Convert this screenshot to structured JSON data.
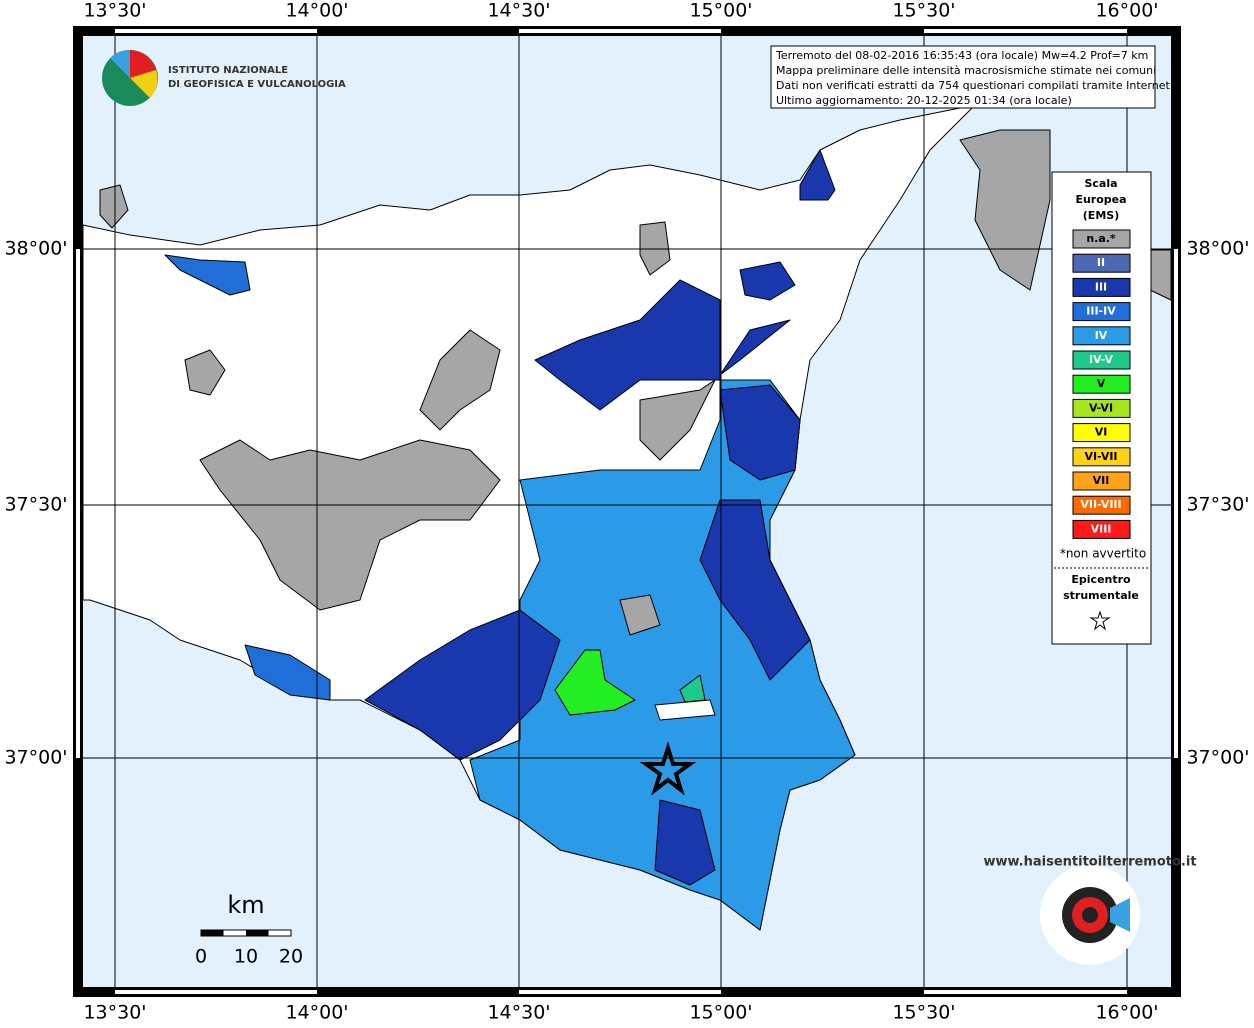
{
  "logo": {
    "line1": "ISTITUTO NAZIONALE",
    "line2": "DI GEOFISICA E VULCANOLOGIA"
  },
  "info": {
    "lines": [
      "Terremoto del 08-02-2016 16:35:43 (ora locale) Mw=4.2 Prof=7 km",
      "Mappa preliminare delle intensità macrosismiche stimate nei comuni",
      "Dati non verificati estratti da 754 questionari compilati tramite Internet.",
      "Ultimo aggiornamento: 20-12-2025 01:34 (ora locale)"
    ]
  },
  "axes": {
    "longitudes": [
      "13°30'",
      "14°00'",
      "14°30'",
      "15°00'",
      "15°30'",
      "16°00'"
    ],
    "latitudes": [
      "38°00'",
      "37°30'",
      "37°00'"
    ]
  },
  "legend": {
    "title": [
      "Scala",
      "Europea",
      "(EMS)"
    ],
    "items": [
      {
        "label": "n.a.*",
        "color": "#a6a6a6"
      },
      {
        "label": "II",
        "color": "#4a68b4"
      },
      {
        "label": "III",
        "color": "#1a38ae"
      },
      {
        "label": "III-IV",
        "color": "#206fd8"
      },
      {
        "label": "IV",
        "color": "#2b9be8"
      },
      {
        "label": "IV-V",
        "color": "#1fc98a"
      },
      {
        "label": "V",
        "color": "#22ee22"
      },
      {
        "label": "V-VI",
        "color": "#a6e61e"
      },
      {
        "label": "VI",
        "color": "#ffff00"
      },
      {
        "label": "VI-VII",
        "color": "#ffd21a"
      },
      {
        "label": "VII",
        "color": "#ffa41a"
      },
      {
        "label": "VII-VIII",
        "color": "#ff6a00"
      },
      {
        "label": "VIII",
        "color": "#ff1a1a"
      }
    ],
    "note": "*non avvertito",
    "epicenter": [
      "Epicentro",
      "strumentale"
    ]
  },
  "scale": {
    "unit": "km",
    "ticks": [
      "0",
      "10",
      "20"
    ]
  },
  "watermark": "www.haisentitoilterremoto.it"
}
